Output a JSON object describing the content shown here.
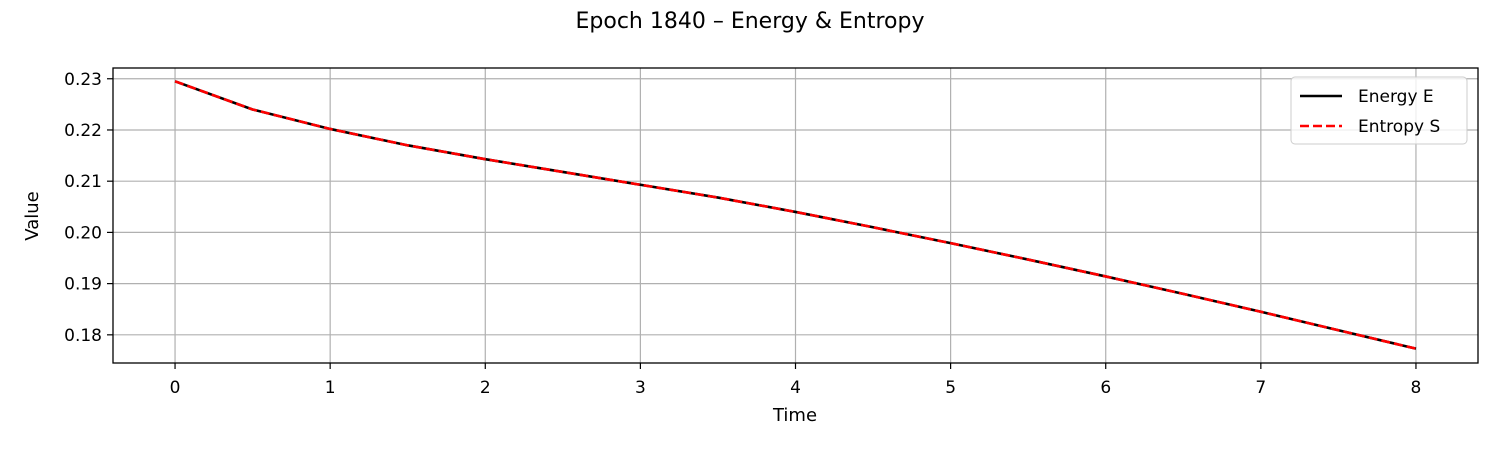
{
  "chart_data": {
    "type": "line",
    "title": "Epoch 1840 – Energy & Entropy",
    "xlabel": "Time",
    "ylabel": "Value",
    "xlim": [
      -0.4,
      8.4
    ],
    "ylim": [
      0.1745,
      0.2321
    ],
    "xticks": [
      0,
      1,
      2,
      3,
      4,
      5,
      6,
      7,
      8
    ],
    "yticks": [
      0.18,
      0.19,
      0.2,
      0.21,
      0.22,
      0.23
    ],
    "ytick_labels": [
      "0.18",
      "0.19",
      "0.20",
      "0.21",
      "0.22",
      "0.23"
    ],
    "grid": true,
    "legend_position": "top-right",
    "x": [
      0,
      0.5,
      1,
      1.5,
      2,
      2.5,
      3,
      3.5,
      4,
      4.5,
      5,
      5.5,
      6,
      6.5,
      7,
      7.5,
      8
    ],
    "series": [
      {
        "name": "Energy E",
        "color": "#000000",
        "style": "solid",
        "values": [
          0.2295,
          0.224,
          0.2202,
          0.217,
          0.2143,
          0.2118,
          0.2093,
          0.2068,
          0.204,
          0.201,
          0.1979,
          0.1947,
          0.1914,
          0.188,
          0.1845,
          0.1809,
          0.1773
        ]
      },
      {
        "name": "Entropy S",
        "color": "#ff0000",
        "style": "dashed",
        "values": [
          0.2295,
          0.224,
          0.2202,
          0.217,
          0.2143,
          0.2118,
          0.2093,
          0.2068,
          0.204,
          0.201,
          0.1979,
          0.1947,
          0.1914,
          0.188,
          0.1845,
          0.1809,
          0.1773
        ]
      }
    ]
  }
}
